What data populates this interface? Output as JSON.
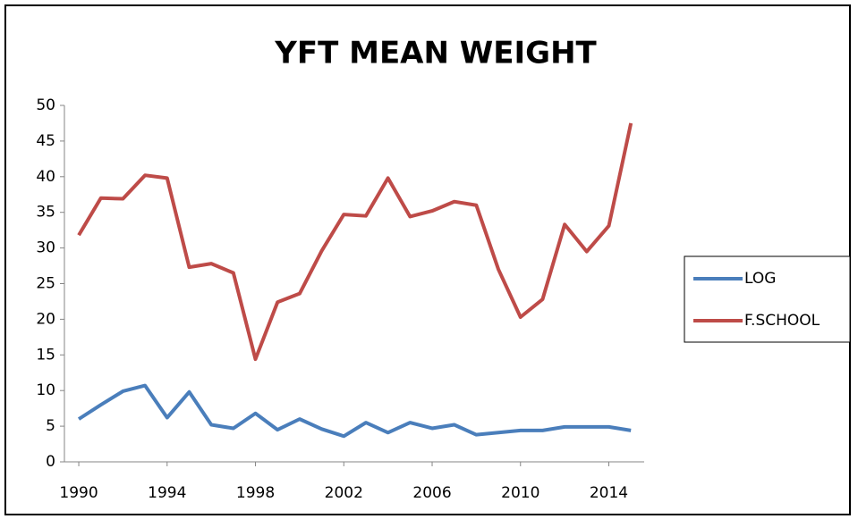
{
  "chart_data": {
    "type": "line",
    "title": "YFT MEAN WEIGHT",
    "x": [
      1990,
      1991,
      1992,
      1993,
      1994,
      1995,
      1996,
      1997,
      1998,
      1999,
      2000,
      2001,
      2002,
      2003,
      2004,
      2005,
      2006,
      2007,
      2008,
      2009,
      2010,
      2011,
      2012,
      2013,
      2014,
      2015
    ],
    "series": [
      {
        "name": "LOG",
        "color": "#4a7ebb",
        "values": [
          6.0,
          8.0,
          9.9,
          10.7,
          6.2,
          9.8,
          5.2,
          4.7,
          6.8,
          4.5,
          6.0,
          4.6,
          3.6,
          5.5,
          4.1,
          5.5,
          4.7,
          5.2,
          3.8,
          4.1,
          4.4,
          4.4,
          4.9,
          4.9,
          4.9,
          4.4
        ]
      },
      {
        "name": "F.SCHOOL",
        "color": "#be4b48",
        "values": [
          31.8,
          37.0,
          36.9,
          40.2,
          39.8,
          27.3,
          27.8,
          26.5,
          14.4,
          22.4,
          23.6,
          29.6,
          34.7,
          34.5,
          39.8,
          34.4,
          35.2,
          36.5,
          36.0,
          27.0,
          20.3,
          22.8,
          33.3,
          29.5,
          33.1,
          47.5
        ]
      }
    ],
    "xlim": [
      1989.35,
      2015.6
    ],
    "xticks": [
      1990,
      1994,
      1998,
      2002,
      2006,
      2010,
      2014
    ],
    "ylim": [
      0,
      50
    ],
    "yticks": [
      0,
      5,
      10,
      15,
      20,
      25,
      30,
      35,
      40,
      45,
      50
    ],
    "legend": "right"
  }
}
